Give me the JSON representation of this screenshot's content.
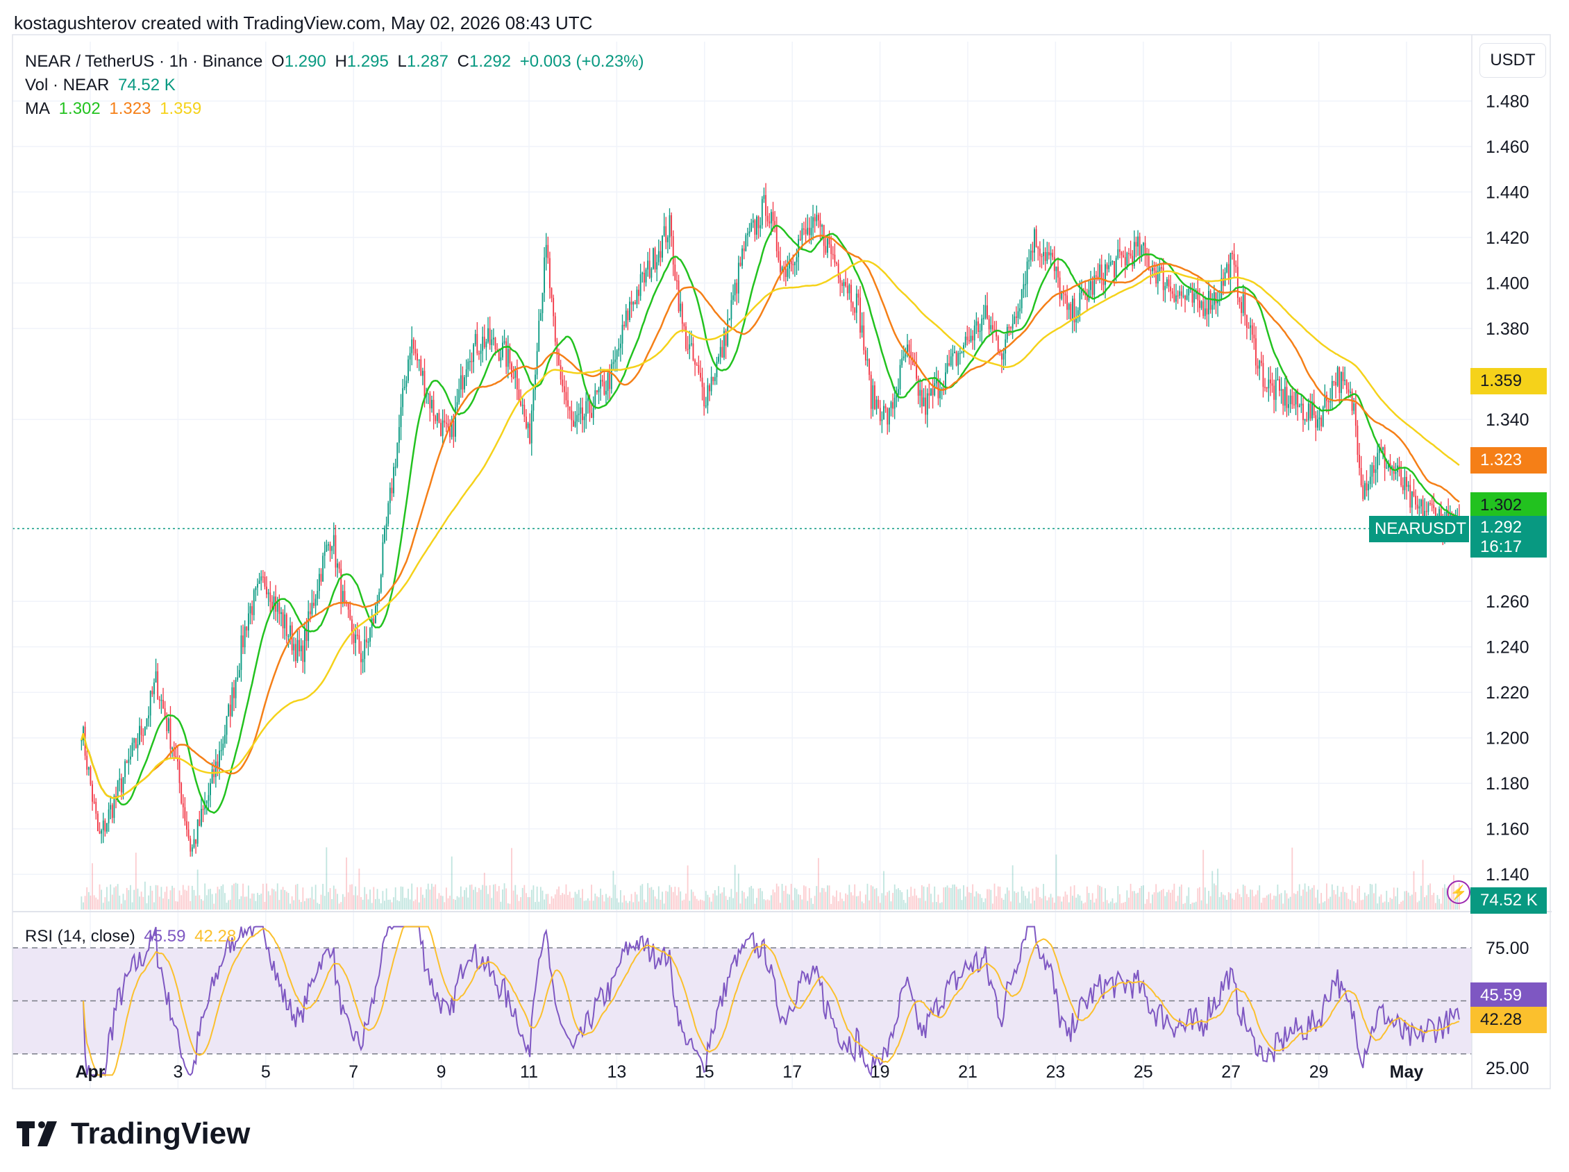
{
  "header": {
    "author_line": "kostagushterov created with TradingView.com, May 02, 2026 08:43 UTC"
  },
  "legend": {
    "symbol": "NEAR / TetherUS · 1h · Binance",
    "o_label": "O",
    "o": "1.290",
    "h_label": "H",
    "h": "1.295",
    "l_label": "L",
    "l": "1.287",
    "c_label": "C",
    "c": "1.292",
    "change": "+0.003 (+0.23%)",
    "vol_label": "Vol · NEAR",
    "vol": "74.52 K",
    "ma_label": "MA",
    "ma1": "1.302",
    "ma2": "1.323",
    "ma3": "1.359"
  },
  "rsi_legend": {
    "label": "RSI (14, close)",
    "rsi": "45.59",
    "rsi_ma": "42.28"
  },
  "currency_button": "USDT",
  "badges": {
    "ma3": "1.359",
    "ma2": "1.323",
    "ma1": "1.302",
    "symbol": "NEARUSDT",
    "price": "1.292",
    "countdown": "16:17",
    "volume": "74.52 K",
    "rsi": "45.59",
    "rsi_ma": "42.28"
  },
  "footer": {
    "brand": "TradingView"
  },
  "colors": {
    "up": "#089981",
    "down": "#f23645",
    "ma1": "#22c21f",
    "ma2": "#f57f17",
    "ma3": "#f5d21a",
    "rsi": "#7e57c2",
    "rsi_ma": "#fbc02d",
    "rsi_band": "#ede7f6"
  },
  "chart_data": {
    "type": "candlestick",
    "price_axis": {
      "ticks": [
        "1.480",
        "1.460",
        "1.440",
        "1.420",
        "1.400",
        "1.380",
        "1.340",
        "1.260",
        "1.240",
        "1.220",
        "1.200",
        "1.180",
        "1.160",
        "1.140"
      ],
      "range": [
        1.13,
        1.5
      ]
    },
    "rsi_axis": {
      "ticks": [
        "75.00",
        "25.00"
      ],
      "levels": [
        70,
        50,
        30
      ]
    },
    "x_ticks": [
      "Apr",
      "3",
      "5",
      "7",
      "9",
      "11",
      "13",
      "15",
      "17",
      "19",
      "21",
      "23",
      "25",
      "27",
      "29",
      "May"
    ],
    "x_tick_days": [
      1,
      3,
      5,
      7,
      9,
      11,
      13,
      15,
      17,
      19,
      21,
      23,
      25,
      27,
      29,
      31
    ],
    "anchors": [
      [
        0.8,
        1.205
      ],
      [
        1.2,
        1.155
      ],
      [
        1.7,
        1.18
      ],
      [
        2.3,
        1.21
      ],
      [
        2.5,
        1.225
      ],
      [
        2.9,
        1.195
      ],
      [
        3.3,
        1.15
      ],
      [
        3.7,
        1.175
      ],
      [
        4.1,
        1.205
      ],
      [
        4.6,
        1.255
      ],
      [
        5.0,
        1.27
      ],
      [
        5.3,
        1.255
      ],
      [
        5.8,
        1.235
      ],
      [
        6.2,
        1.27
      ],
      [
        6.5,
        1.29
      ],
      [
        6.8,
        1.255
      ],
      [
        7.2,
        1.235
      ],
      [
        7.5,
        1.255
      ],
      [
        7.8,
        1.3
      ],
      [
        8.0,
        1.33
      ],
      [
        8.3,
        1.375
      ],
      [
        8.8,
        1.345
      ],
      [
        9.2,
        1.33
      ],
      [
        9.6,
        1.37
      ],
      [
        10.0,
        1.375
      ],
      [
        10.4,
        1.37
      ],
      [
        10.7,
        1.36
      ],
      [
        11.0,
        1.33
      ],
      [
        11.2,
        1.38
      ],
      [
        11.4,
        1.415
      ],
      [
        11.6,
        1.37
      ],
      [
        12.0,
        1.335
      ],
      [
        12.4,
        1.345
      ],
      [
        12.9,
        1.36
      ],
      [
        13.3,
        1.39
      ],
      [
        13.7,
        1.405
      ],
      [
        14.2,
        1.425
      ],
      [
        14.5,
        1.38
      ],
      [
        15.0,
        1.35
      ],
      [
        15.4,
        1.37
      ],
      [
        15.9,
        1.415
      ],
      [
        16.4,
        1.435
      ],
      [
        16.8,
        1.405
      ],
      [
        17.2,
        1.42
      ],
      [
        17.6,
        1.425
      ],
      [
        18.1,
        1.405
      ],
      [
        18.5,
        1.39
      ],
      [
        18.8,
        1.35
      ],
      [
        19.2,
        1.34
      ],
      [
        19.6,
        1.37
      ],
      [
        20.0,
        1.345
      ],
      [
        20.5,
        1.36
      ],
      [
        21.0,
        1.375
      ],
      [
        21.4,
        1.385
      ],
      [
        21.8,
        1.37
      ],
      [
        22.2,
        1.395
      ],
      [
        22.5,
        1.42
      ],
      [
        22.9,
        1.41
      ],
      [
        23.3,
        1.385
      ],
      [
        23.7,
        1.395
      ],
      [
        24.1,
        1.405
      ],
      [
        24.5,
        1.41
      ],
      [
        24.9,
        1.415
      ],
      [
        25.3,
        1.405
      ],
      [
        25.8,
        1.395
      ],
      [
        26.3,
        1.39
      ],
      [
        26.7,
        1.395
      ],
      [
        27.0,
        1.41
      ],
      [
        27.4,
        1.38
      ],
      [
        27.8,
        1.355
      ],
      [
        28.2,
        1.35
      ],
      [
        28.6,
        1.345
      ],
      [
        29.0,
        1.34
      ],
      [
        29.4,
        1.36
      ],
      [
        29.8,
        1.345
      ],
      [
        30.0,
        1.31
      ],
      [
        30.4,
        1.325
      ],
      [
        30.8,
        1.315
      ],
      [
        31.2,
        1.3
      ],
      [
        31.6,
        1.3
      ],
      [
        32.0,
        1.293
      ],
      [
        32.2,
        1.292
      ]
    ],
    "last_close": 1.292,
    "ma_last": {
      "ma1": 1.302,
      "ma2": 1.323,
      "ma3": 1.359
    }
  }
}
